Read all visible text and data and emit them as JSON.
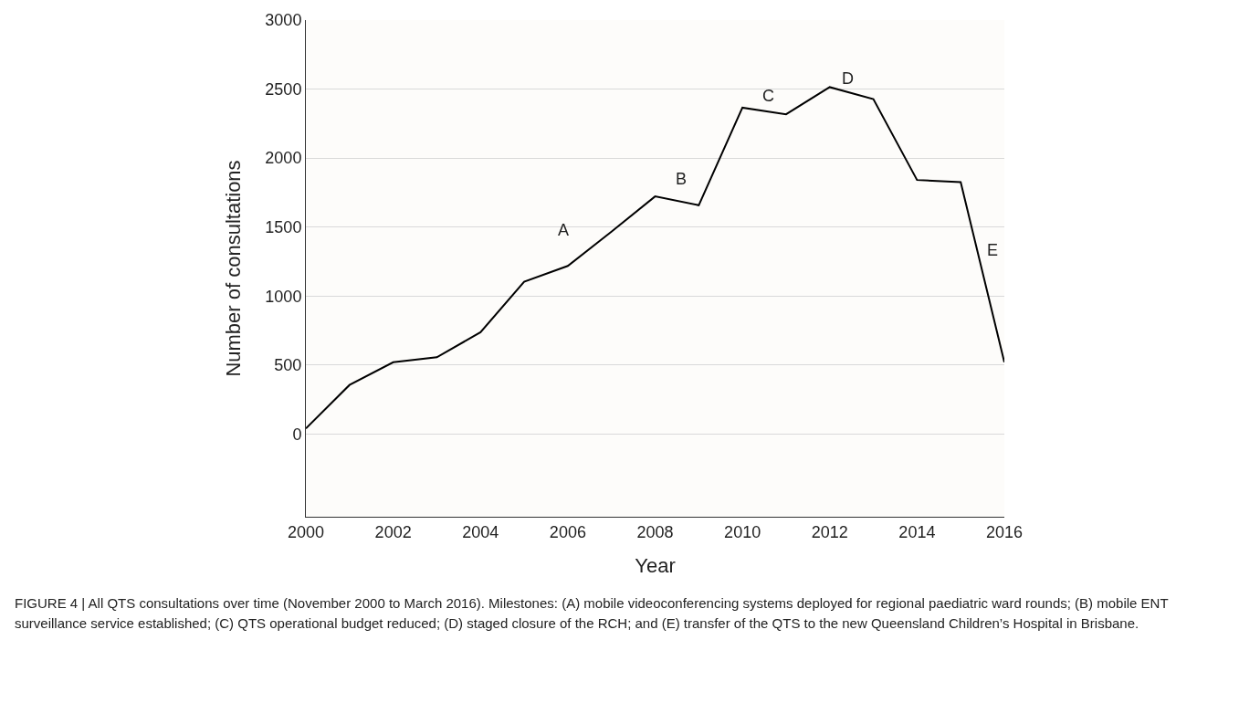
{
  "chart_data": {
    "type": "line",
    "xlabel": "Year",
    "ylabel": "Number of consultations",
    "x": [
      2000,
      2001,
      2002,
      2003,
      2004,
      2005,
      2006,
      2007,
      2008,
      2009,
      2010,
      2011,
      2012,
      2013,
      2014,
      2015,
      2016
    ],
    "series": [
      {
        "color": "#000000",
        "values": [
          40,
          355,
          520,
          556,
          737,
          1104,
          1218,
          1466,
          1722,
          1658,
          2365,
          2317,
          2514,
          2427,
          1841,
          1825,
          520
        ]
      }
    ],
    "xlim": [
      2000,
      2016
    ],
    "xticks": [
      2000,
      2002,
      2004,
      2006,
      2008,
      2010,
      2012,
      2014,
      2016
    ],
    "ylim": [
      -600,
      3000
    ],
    "yticks": [
      0,
      500,
      1000,
      1500,
      2000,
      2500,
      3000
    ],
    "grid": "y",
    "marker": "none",
    "line_style": "solid",
    "annotations": [
      "A",
      "B",
      "C",
      "D",
      "E",
      "FIGURE 4 | All QTS consultations over time (November 2000 to March 2016). Milestones: (A) mobile videoconferencing systems deployed for regional paediatric ward rounds; (B) mobile ENT surveillance service established; (C) QTS operational budget reduced; (D) staged closure of the RCH; and (E) transfer of the QTS to the new Queensland Children’s Hospital in Brisbane."
    ]
  }
}
